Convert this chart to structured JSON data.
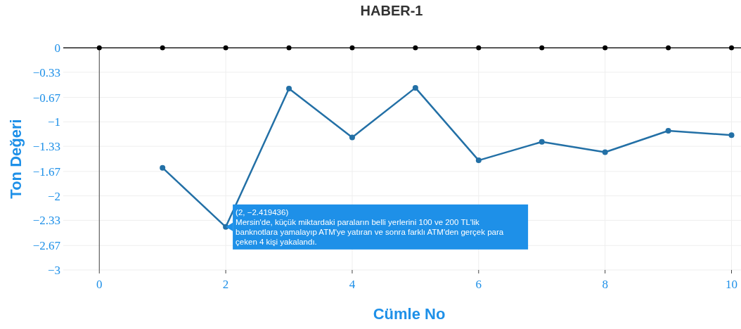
{
  "chart_data": {
    "type": "line",
    "title": "HABER-1",
    "xlabel": "Cümle No",
    "ylabel": "Ton Değeri",
    "series": [
      {
        "type": "scatter",
        "color": "#000000",
        "x": [
          0,
          1,
          2,
          3,
          4,
          5,
          6,
          7,
          8,
          9,
          10
        ],
        "values": [
          0,
          0,
          0,
          0,
          0,
          0,
          0,
          0,
          0,
          0,
          0
        ]
      },
      {
        "color": "#2370a6",
        "x": [
          1,
          2,
          3,
          4,
          5,
          6,
          7,
          8,
          9,
          10
        ],
        "values": [
          -1.62,
          -2.419436,
          -0.55,
          -1.21,
          -0.54,
          -1.52,
          -1.27,
          -1.41,
          -1.12,
          -1.18
        ]
      }
    ],
    "xlim": [
      -0.57,
      10.15
    ],
    "xticks": [
      0,
      2,
      4,
      6,
      8,
      10
    ],
    "ylim": [
      -3,
      0
    ],
    "yticks": [
      0,
      {
        "value": -0.33,
        "label": "−0.33"
      },
      {
        "value": -0.67,
        "label": "−0.67"
      },
      {
        "value": -1,
        "label": "−1"
      },
      {
        "value": -1.33,
        "label": "−1.33"
      },
      {
        "value": -1.67,
        "label": "−1.67"
      },
      {
        "value": -2,
        "label": "−2"
      },
      {
        "value": -2.33,
        "label": "−2.33"
      },
      {
        "value": -2.67,
        "label": "−2.67"
      },
      {
        "value": -3,
        "label": "−3"
      }
    ],
    "grid": true,
    "marker": "circle",
    "line_style": "solid",
    "annotations": [
      {
        "text": "(2, −2.419436)\nMersin'de, küçük miktardaki paraların belli yerlerini 100 ve 200 TL'lik\nbanknotlara yamalayıp ATM'ye yatıran ve sonra farklı ATM'den gerçek para\nçeken 4 kişi yakalandı.",
        "x": 2,
        "y": -2.419436
      }
    ]
  }
}
